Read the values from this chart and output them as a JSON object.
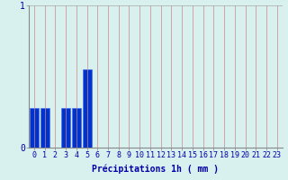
{
  "values": [
    0.28,
    0.28,
    0.0,
    0.28,
    0.28,
    0.55,
    0.0,
    0.0,
    0.0,
    0.0,
    0.0,
    0.0,
    0.0,
    0.0,
    0.0,
    0.0,
    0.0,
    0.0,
    0.0,
    0.0,
    0.0,
    0.0,
    0.0,
    0.0
  ],
  "xlabel": "Précipitations 1h ( mm )",
  "ylim": [
    0,
    1.0
  ],
  "xlim": [
    -0.5,
    23.5
  ],
  "ytick_vals": [
    0,
    1
  ],
  "ytick_labels": [
    "0",
    "1"
  ],
  "xticks": [
    0,
    1,
    2,
    3,
    4,
    5,
    6,
    7,
    8,
    9,
    10,
    11,
    12,
    13,
    14,
    15,
    16,
    17,
    18,
    19,
    20,
    21,
    22,
    23
  ],
  "bar_color": "#0033cc",
  "bar_edge_color": "#4466ee",
  "background_color": "#d8f0ee",
  "grid_color": "#cc8888",
  "text_color": "#0000aa",
  "xlabel_fontsize": 7,
  "tick_fontsize": 6,
  "ytick_fontsize": 7
}
